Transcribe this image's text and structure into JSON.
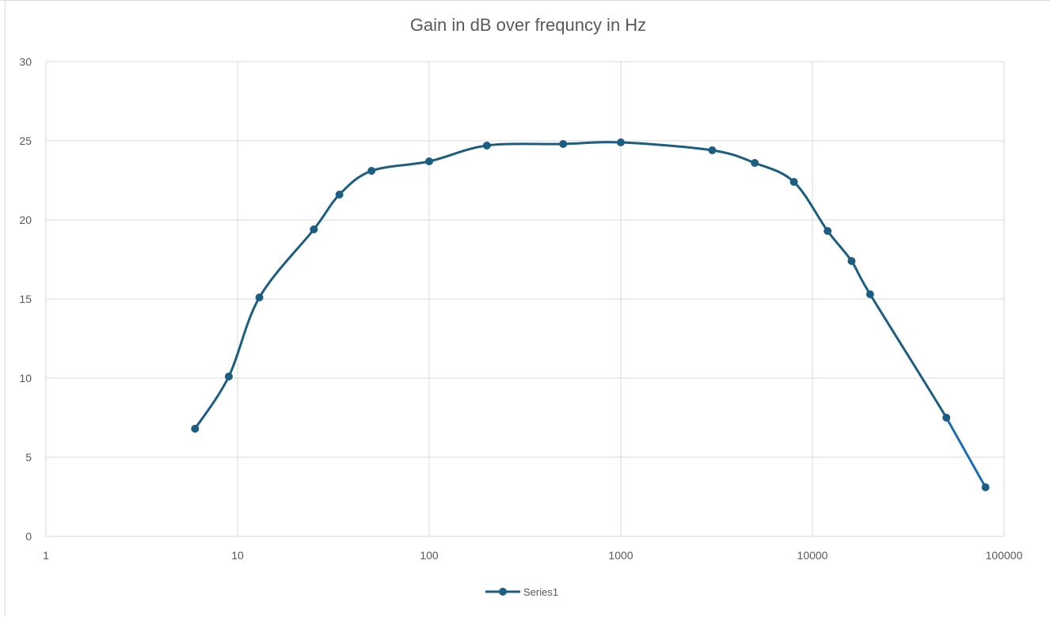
{
  "chart_data": {
    "type": "scatter",
    "title": "Gain in dB over frequncy in Hz",
    "xlabel": "",
    "ylabel": "",
    "xscale": "log",
    "xlim": [
      1,
      100000
    ],
    "ylim": [
      0,
      30
    ],
    "x_ticks": [
      "1",
      "10",
      "100",
      "1000",
      "10000",
      "100000"
    ],
    "y_ticks": [
      "0",
      "5",
      "10",
      "15",
      "20",
      "25",
      "30"
    ],
    "grid": true,
    "legend_position": "bottom",
    "line_style": "smoothed",
    "colors": {
      "series": "#1b5e82",
      "tail": "#1a6fb5",
      "grid": "#d9d9d9",
      "text": "#595959"
    },
    "series": [
      {
        "name": "Series1",
        "x": [
          6,
          9,
          13,
          25,
          34,
          50,
          100,
          200,
          500,
          1000,
          3000,
          5000,
          8000,
          12000,
          16000,
          20000,
          50000,
          80000
        ],
        "y": [
          6.8,
          10.1,
          15.1,
          19.4,
          21.6,
          23.1,
          23.7,
          24.7,
          24.8,
          24.9,
          24.4,
          23.6,
          22.4,
          19.3,
          17.4,
          15.3,
          7.5,
          3.1
        ]
      }
    ]
  }
}
